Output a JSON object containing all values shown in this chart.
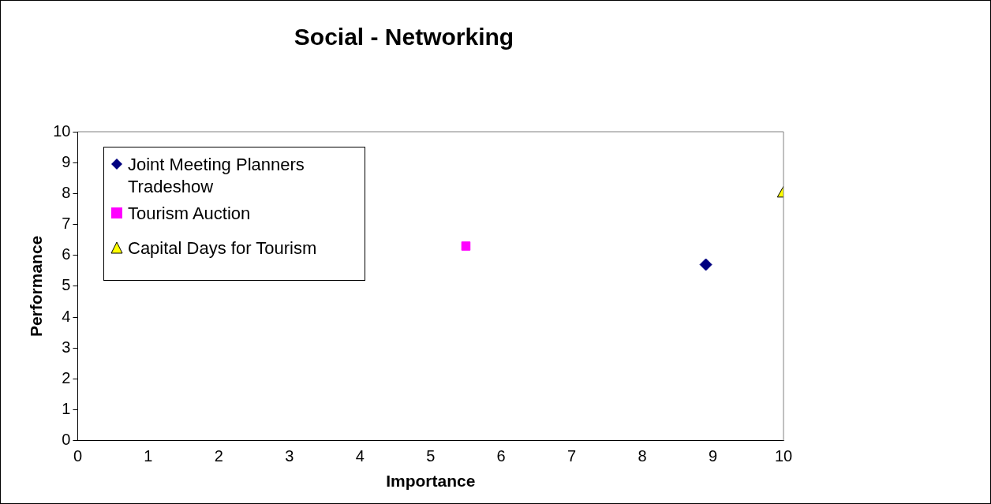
{
  "chart_data": {
    "type": "scatter",
    "title": "Social - Networking",
    "xlabel": "Importance",
    "ylabel": "Performance",
    "xlim": [
      0,
      10
    ],
    "xticks": [
      0,
      1,
      2,
      3,
      4,
      5,
      6,
      7,
      8,
      9,
      10
    ],
    "ylim": [
      0,
      10
    ],
    "yticks": [
      0,
      1,
      2,
      3,
      4,
      5,
      6,
      7,
      8,
      9,
      10
    ],
    "grid": false,
    "legend": "top left",
    "series": [
      {
        "name": "Joint Meeting Planners Tradeshow",
        "color": "#000080",
        "marker": "diamond",
        "x": [
          8.9
        ],
        "values": [
          5.7
        ]
      },
      {
        "name": "Tourism Auction",
        "color": "#ff00ff",
        "marker": "square",
        "x": [
          5.5
        ],
        "values": [
          6.3
        ]
      },
      {
        "name": "Capital Days for Tourism",
        "color": "#ffff00",
        "marker": "triangle",
        "x": [
          10
        ],
        "values": [
          8
        ]
      }
    ]
  }
}
